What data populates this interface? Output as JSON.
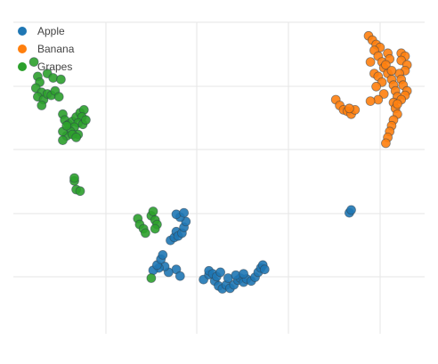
{
  "chart_data": {
    "type": "scatter",
    "title": "",
    "xlabel": "",
    "ylabel": "",
    "xlim": [
      0,
      10
    ],
    "ylim": [
      0,
      10
    ],
    "grid": true,
    "show_tick_labels": false,
    "legend_placement": "top-left",
    "series": [
      {
        "name": "Apple",
        "color": "#1f77b4",
        "points": [
          [
            4.76,
            1.5
          ],
          [
            4.9,
            1.67
          ],
          [
            5.05,
            1.45
          ],
          [
            5.15,
            1.28
          ],
          [
            5.25,
            1.18
          ],
          [
            5.35,
            1.31
          ],
          [
            5.45,
            1.2
          ],
          [
            5.55,
            1.32
          ],
          [
            5.65,
            1.48
          ],
          [
            5.72,
            1.55
          ],
          [
            5.8,
            1.41
          ],
          [
            5.88,
            1.52
          ],
          [
            6.0,
            1.45
          ],
          [
            6.1,
            1.58
          ],
          [
            6.18,
            1.75
          ],
          [
            6.25,
            1.9
          ],
          [
            6.3,
            2.0
          ],
          [
            6.35,
            1.85
          ],
          [
            4.9,
            1.8
          ],
          [
            5.0,
            1.7
          ],
          [
            5.1,
            1.6
          ],
          [
            5.2,
            1.75
          ],
          [
            5.4,
            1.55
          ],
          [
            5.6,
            1.65
          ],
          [
            5.8,
            1.7
          ],
          [
            4.05,
            1.85
          ],
          [
            4.15,
            1.62
          ],
          [
            3.85,
            1.75
          ],
          [
            3.75,
            1.95
          ],
          [
            3.6,
            1.9
          ],
          [
            3.45,
            1.82
          ],
          [
            3.55,
            2.0
          ],
          [
            3.65,
            2.2
          ],
          [
            3.7,
            2.35
          ],
          [
            3.9,
            2.85
          ],
          [
            4.0,
            2.95
          ],
          [
            4.05,
            3.15
          ],
          [
            4.1,
            3.0
          ],
          [
            4.2,
            3.1
          ],
          [
            4.25,
            3.3
          ],
          [
            4.3,
            3.5
          ],
          [
            4.15,
            3.65
          ],
          [
            4.05,
            3.75
          ],
          [
            4.25,
            3.8
          ],
          [
            8.55,
            3.8
          ],
          [
            8.6,
            3.9
          ]
        ]
      },
      {
        "name": "Banana",
        "color": "#ff7f0e",
        "points": [
          [
            9.05,
            9.9
          ],
          [
            9.15,
            9.75
          ],
          [
            9.25,
            9.6
          ],
          [
            9.35,
            9.5
          ],
          [
            9.2,
            9.4
          ],
          [
            9.3,
            9.2
          ],
          [
            9.4,
            9.0
          ],
          [
            9.45,
            8.8
          ],
          [
            9.55,
            8.6
          ],
          [
            9.65,
            8.4
          ],
          [
            9.7,
            8.2
          ],
          [
            9.75,
            8.0
          ],
          [
            9.8,
            7.8
          ],
          [
            9.7,
            7.6
          ],
          [
            9.75,
            7.4
          ],
          [
            9.8,
            7.2
          ],
          [
            9.7,
            7.0
          ],
          [
            9.65,
            6.8
          ],
          [
            9.6,
            6.6
          ],
          [
            9.55,
            6.4
          ],
          [
            9.5,
            6.2
          ],
          [
            9.9,
            9.3
          ],
          [
            10.0,
            9.2
          ],
          [
            9.9,
            9.05
          ],
          [
            10.05,
            8.9
          ],
          [
            10.0,
            8.7
          ],
          [
            9.85,
            8.6
          ],
          [
            9.9,
            8.4
          ],
          [
            9.95,
            8.2
          ],
          [
            10.05,
            8.0
          ],
          [
            10.0,
            7.85
          ],
          [
            9.9,
            7.7
          ],
          [
            9.8,
            7.55
          ],
          [
            9.1,
            9.0
          ],
          [
            9.2,
            8.6
          ],
          [
            9.3,
            8.5
          ],
          [
            9.4,
            8.3
          ],
          [
            9.25,
            8.15
          ],
          [
            9.45,
            7.9
          ],
          [
            9.3,
            7.7
          ],
          [
            9.1,
            7.65
          ],
          [
            9.55,
            9.3
          ],
          [
            9.6,
            9.1
          ],
          [
            9.5,
            8.9
          ],
          [
            9.65,
            8.7
          ],
          [
            8.2,
            7.7
          ],
          [
            8.3,
            7.5
          ],
          [
            8.4,
            7.35
          ],
          [
            8.5,
            7.3
          ],
          [
            8.6,
            7.2
          ],
          [
            8.7,
            7.35
          ],
          [
            8.55,
            7.4
          ]
        ]
      },
      {
        "name": "Grapes",
        "color": "#2ca02c",
        "points": [
          [
            0.35,
            9.0
          ],
          [
            0.45,
            8.5
          ],
          [
            0.5,
            8.3
          ],
          [
            0.4,
            8.1
          ],
          [
            0.55,
            7.95
          ],
          [
            0.45,
            7.8
          ],
          [
            0.6,
            7.7
          ],
          [
            0.7,
            7.9
          ],
          [
            0.8,
            7.85
          ],
          [
            0.9,
            8.0
          ],
          [
            1.0,
            7.8
          ],
          [
            0.7,
            8.6
          ],
          [
            0.85,
            8.45
          ],
          [
            1.05,
            8.4
          ],
          [
            0.55,
            7.5
          ],
          [
            1.1,
            7.2
          ],
          [
            1.15,
            7.0
          ],
          [
            1.25,
            6.85
          ],
          [
            1.35,
            6.95
          ],
          [
            1.45,
            7.1
          ],
          [
            1.55,
            7.25
          ],
          [
            1.65,
            7.35
          ],
          [
            1.6,
            7.1
          ],
          [
            1.5,
            6.9
          ],
          [
            1.4,
            6.75
          ],
          [
            1.3,
            6.6
          ],
          [
            1.2,
            6.45
          ],
          [
            1.1,
            6.3
          ],
          [
            1.5,
            6.5
          ],
          [
            1.62,
            6.85
          ],
          [
            1.7,
            7.0
          ],
          [
            1.1,
            6.6
          ],
          [
            1.2,
            6.8
          ],
          [
            1.35,
            6.5
          ],
          [
            1.45,
            6.4
          ],
          [
            1.4,
            4.9
          ],
          [
            1.45,
            4.6
          ],
          [
            1.55,
            4.55
          ],
          [
            1.4,
            5.0
          ],
          [
            3.05,
            3.6
          ],
          [
            3.1,
            3.4
          ],
          [
            3.2,
            3.25
          ],
          [
            3.25,
            3.1
          ],
          [
            3.4,
            3.7
          ],
          [
            3.5,
            3.55
          ],
          [
            3.55,
            3.4
          ],
          [
            3.5,
            3.25
          ],
          [
            3.45,
            3.85
          ],
          [
            3.4,
            1.55
          ]
        ]
      }
    ]
  }
}
